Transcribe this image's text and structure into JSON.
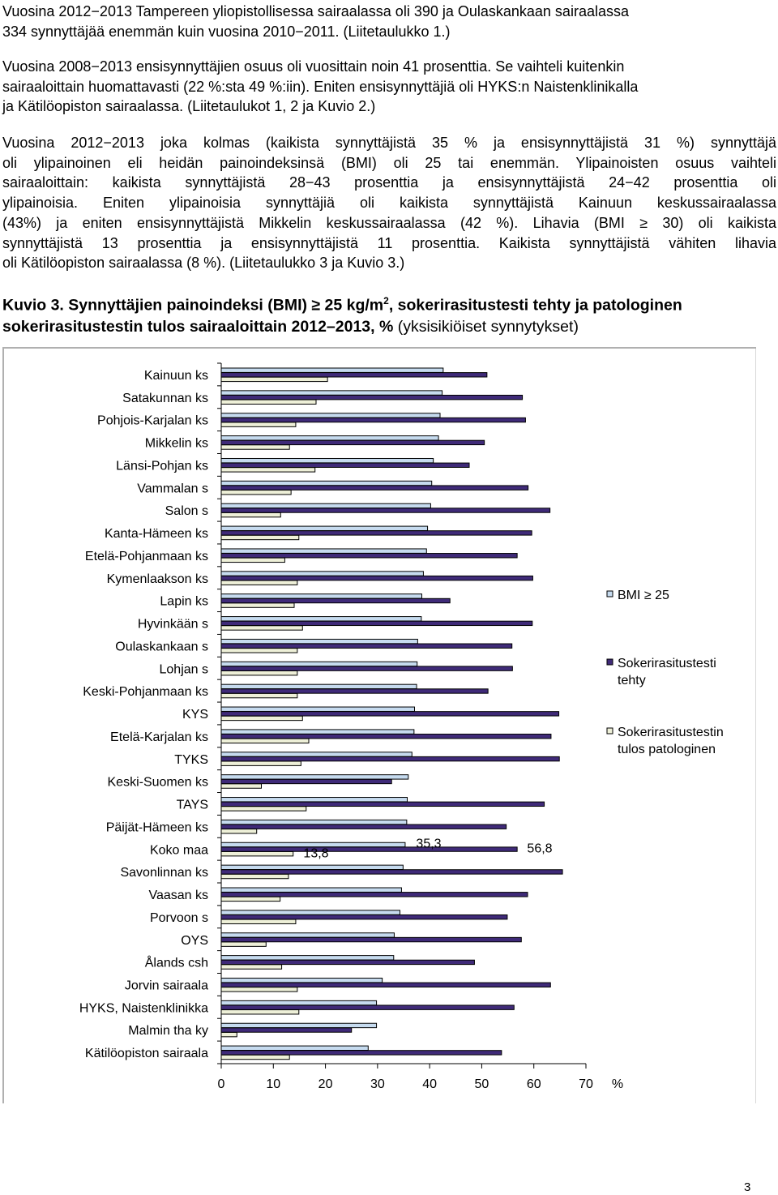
{
  "paragraphs": [
    {
      "lines": [
        "Vuosina 2012−2013 Tampereen yliopistollisessa sairaalassa oli 390 ja Oulaskankaan sairaalassa",
        "334 synnyttäjää enemmän kuin vuosina 2010−2011. (Liitetaulukko 1.)"
      ]
    },
    {
      "lines": [
        "Vuosina 2008−2013 ensisynnyttäjien osuus oli vuosittain noin 41 prosenttia. Se vaihteli kuitenkin",
        "sairaaloittain huomattavasti (22 %:sta 49 %:iin). Eniten ensisynnyttäjiä oli HYKS:n Naistenklinikalla",
        "ja Kätilöopiston sairaalassa. (Liitetaulukot 1, 2 ja Kuvio 2.)"
      ]
    },
    {
      "lines": [
        "Vuosina 2012−2013 joka kolmas (kaikista synnyttäjistä 35 % ja ensisynnyttäjistä 31 %) synnyttäjä",
        "oli ylipainoinen eli heidän painoindeksinsä (BMI) oli 25 tai enemmän. Ylipainoisten osuus vaihteli",
        "sairaaloittain: kaikista synnyttäjistä 28−43 prosenttia ja ensisynnyttäjistä 24−42 prosenttia oli",
        "ylipainoisia. Eniten ylipainoisia synnyttäjiä oli kaikista synnyttäjistä Kainuun keskussairaalassa",
        "(43%) ja eniten ensisynnyttäjistä Mikkelin keskussairaalassa (42 %). Lihavia (BMI ≥ 30) oli kaikista",
        "synnyttäjistä 13 prosenttia ja ensisynnyttäjistä 11 prosenttia. Kaikista synnyttäjistä vähiten lihavia",
        "oli Kätilöopiston sairaalassa (8 %). (Liitetaulukko 3 ja Kuvio 3.)"
      ]
    }
  ],
  "caption": {
    "label": "Kuvio 3.",
    "line1_bold": " Synnyttäjien painoindeksi (BMI) ≥ 25 kg/m",
    "superscript": "2",
    "line1_rest": ", sokerirasitustesti tehty ja patologinen",
    "line2_bold": "sokerirasitustestin tulos sairaaloittain 2012–2013, %",
    "line2_normal": " (yksisikiöiset synnytykset)"
  },
  "page_number": "3",
  "chart_data": {
    "type": "bar",
    "orientation": "horizontal",
    "categories": [
      "Kainuun ks",
      "Satakunnan ks",
      "Pohjois-Karjalan ks",
      "Mikkelin ks",
      "Länsi-Pohjan ks",
      "Vammalan s",
      "Salon s",
      "Kanta-Hämeen ks",
      "Etelä-Pohjanmaan ks",
      "Kymenlaakson ks",
      "Lapin ks",
      "Hyvinkään s",
      "Oulaskankaan s",
      "Lohjan s",
      "Keski-Pohjanmaan ks",
      "KYS",
      "Etelä-Karjalan ks",
      "TYKS",
      "Keski-Suomen ks",
      "TAYS",
      "Päijät-Hämeen ks",
      "Koko maa",
      "Savonlinnan ks",
      "Vaasan ks",
      "Porvoon s",
      "OYS",
      "Ålands csh",
      "Jorvin sairaala",
      "HYKS, Naistenklinikka",
      "Malmin tha ky",
      "Kätilöopiston sairaala"
    ],
    "series": [
      {
        "name": "BMI ≥ 25",
        "color": "#c6dbef",
        "values": [
          42.6,
          42.4,
          42.0,
          41.7,
          40.7,
          40.4,
          40.2,
          39.6,
          39.4,
          38.8,
          38.5,
          38.4,
          37.7,
          37.6,
          37.5,
          37.1,
          37.0,
          36.6,
          35.9,
          35.7,
          35.6,
          35.3,
          34.9,
          34.6,
          34.3,
          33.2,
          33.1,
          30.9,
          29.8,
          29.8,
          28.2
        ]
      },
      {
        "name": "Sokerirasitustesti tehty",
        "color": "#3f2a78",
        "values": [
          51.0,
          57.8,
          58.4,
          50.5,
          47.6,
          58.9,
          63.1,
          59.6,
          56.8,
          59.8,
          43.9,
          59.7,
          55.8,
          55.9,
          51.2,
          64.8,
          63.3,
          64.9,
          32.7,
          62.0,
          54.7,
          56.8,
          65.5,
          58.8,
          54.9,
          57.6,
          48.6,
          63.2,
          56.2,
          25.0,
          53.8
        ]
      },
      {
        "name": "Sokerirasitustestin tulos patologinen",
        "color": "#eef0d8",
        "values": [
          20.4,
          18.2,
          14.3,
          13.1,
          18.0,
          13.4,
          11.4,
          14.9,
          12.2,
          14.6,
          14.0,
          15.6,
          14.6,
          14.6,
          14.6,
          15.6,
          16.8,
          15.3,
          7.7,
          16.3,
          6.8,
          13.8,
          12.9,
          11.3,
          14.3,
          8.6,
          11.6,
          14.6,
          14.9,
          3.0,
          13.1
        ]
      }
    ],
    "data_labels": [
      "13,8",
      "35,3",
      "56,8"
    ],
    "data_labels_category": "Koko maa",
    "x_ticks": [
      "0",
      "10",
      "20",
      "30",
      "40",
      "50",
      "60",
      "70"
    ],
    "x_unit": "%",
    "xlim": [
      0,
      70
    ],
    "grid": false,
    "legend_position": "right"
  }
}
